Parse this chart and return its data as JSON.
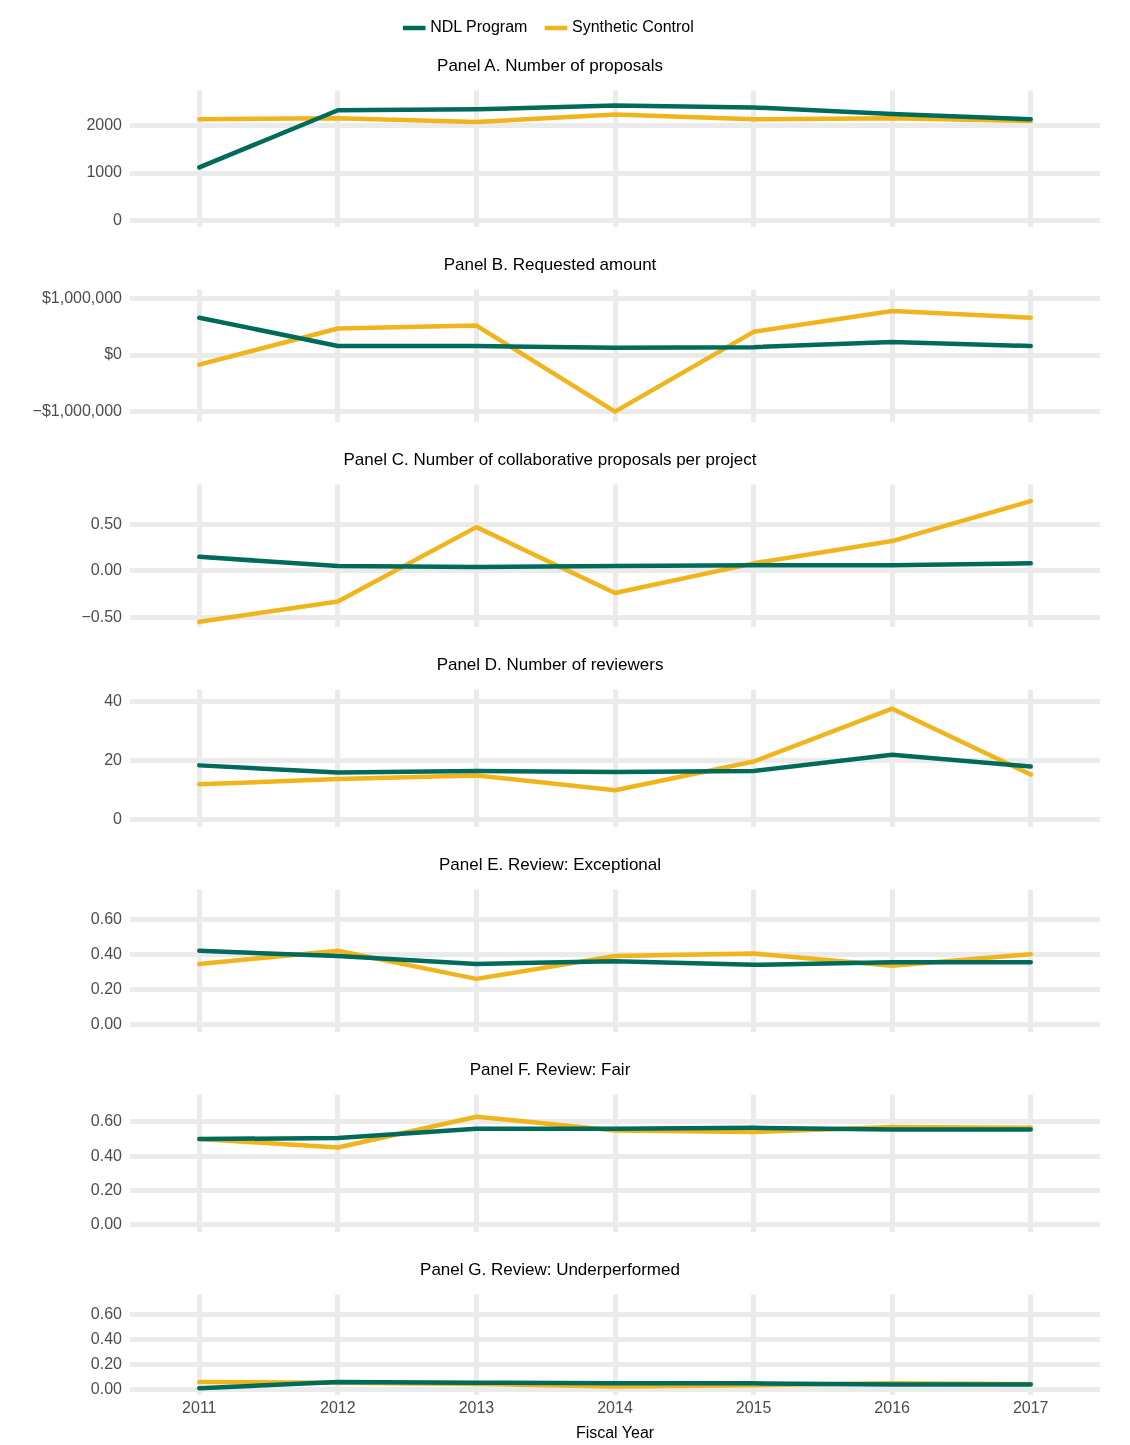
{
  "chart_data": [
    {
      "type": "line",
      "title": "Panel A. Number of proposals",
      "categories": [
        "2011",
        "2012",
        "2013",
        "2014",
        "2015",
        "2016",
        "2017"
      ],
      "legend": "top",
      "tick_labels": "y",
      "grid": true,
      "ylim": [
        -150,
        2750
      ],
      "yticks": [
        0,
        1000,
        2000
      ],
      "series": [
        {
          "name": "NDL Program",
          "color": "#006b5a",
          "values": [
            1120,
            2330,
            2350,
            2430,
            2390,
            2250,
            2140
          ]
        },
        {
          "name": "Synthetic Control",
          "color": "#f0b41c",
          "values": [
            2140,
            2160,
            2080,
            2240,
            2140,
            2160,
            2100
          ]
        }
      ]
    },
    {
      "type": "line",
      "title": "Panel B. Requested amount",
      "categories": [
        "2011",
        "2012",
        "2013",
        "2014",
        "2015",
        "2016",
        "2017"
      ],
      "legend": false,
      "tick_labels": "y",
      "grid": true,
      "ylim": [
        -1190000,
        1160000
      ],
      "yticks": [
        {
          "value": -1000000,
          "label": "−$1,000,000"
        },
        {
          "value": 0,
          "label": "$0"
        },
        {
          "value": 1000000,
          "label": "$1,000,000"
        }
      ],
      "series": [
        {
          "color": "#006b5a",
          "values": [
            660000,
            160000,
            160000,
            130000,
            140000,
            230000,
            160000
          ]
        },
        {
          "color": "#f0b41c",
          "values": [
            -170000,
            470000,
            520000,
            -1000000,
            410000,
            780000,
            660000
          ]
        }
      ]
    },
    {
      "type": "line",
      "title": "Panel C. Number of collaborative proposals per project",
      "categories": [
        "2011",
        "2012",
        "2013",
        "2014",
        "2015",
        "2016",
        "2017"
      ],
      "legend": false,
      "tick_labels": "y",
      "grid": true,
      "ylim": [
        -0.61,
        0.93
      ],
      "yticks": [
        {
          "value": -0.5,
          "label": "−0.50"
        },
        {
          "value": 0,
          "label": "0.00"
        },
        {
          "value": 0.5,
          "label": "0.50"
        }
      ],
      "series": [
        {
          "color": "#006b5a",
          "values": [
            0.15,
            0.05,
            0.04,
            0.05,
            0.06,
            0.06,
            0.08
          ]
        },
        {
          "color": "#f0b41c",
          "values": [
            -0.55,
            -0.33,
            0.47,
            -0.24,
            0.08,
            0.32,
            0.75
          ]
        }
      ]
    },
    {
      "type": "line",
      "title": "Panel D. Number of reviewers",
      "categories": [
        "2011",
        "2012",
        "2013",
        "2014",
        "2015",
        "2016",
        "2017"
      ],
      "legend": false,
      "tick_labels": "y",
      "grid": true,
      "ylim": [
        -2.5,
        44
      ],
      "yticks": [
        0,
        20,
        40
      ],
      "series": [
        {
          "color": "#006b5a",
          "values": [
            18.4,
            16,
            16.5,
            16.2,
            16.5,
            22,
            18
          ]
        },
        {
          "color": "#f0b41c",
          "values": [
            12,
            13.8,
            15,
            10,
            19.7,
            37.5,
            15.3
          ]
        }
      ]
    },
    {
      "type": "line",
      "title": "Panel E. Review: Exceptional",
      "categories": [
        "2011",
        "2012",
        "2013",
        "2014",
        "2015",
        "2016",
        "2017"
      ],
      "legend": false,
      "tick_labels": "y",
      "grid": true,
      "ylim": [
        -0.045,
        0.77
      ],
      "yticks": [
        {
          "value": 0,
          "label": "0.00"
        },
        {
          "value": 0.2,
          "label": "0.20"
        },
        {
          "value": 0.4,
          "label": "0.40"
        },
        {
          "value": 0.6,
          "label": "0.60"
        }
      ],
      "series": [
        {
          "color": "#006b5a",
          "values": [
            0.42,
            0.39,
            0.345,
            0.36,
            0.34,
            0.355,
            0.355
          ]
        },
        {
          "color": "#f0b41c",
          "values": [
            0.345,
            0.42,
            0.26,
            0.39,
            0.405,
            0.335,
            0.4
          ]
        }
      ]
    },
    {
      "type": "line",
      "title": "Panel F. Review: Fair",
      "categories": [
        "2011",
        "2012",
        "2013",
        "2014",
        "2015",
        "2016",
        "2017"
      ],
      "legend": false,
      "tick_labels": "y",
      "grid": true,
      "ylim": [
        -0.045,
        0.76
      ],
      "yticks": [
        {
          "value": 0,
          "label": "0.00"
        },
        {
          "value": 0.2,
          "label": "0.20"
        },
        {
          "value": 0.4,
          "label": "0.40"
        },
        {
          "value": 0.6,
          "label": "0.60"
        }
      ],
      "series": [
        {
          "color": "#006b5a",
          "values": [
            0.5,
            0.505,
            0.56,
            0.56,
            0.565,
            0.555,
            0.555
          ]
        },
        {
          "color": "#f0b41c",
          "values": [
            0.5,
            0.45,
            0.63,
            0.55,
            0.54,
            0.57,
            0.565
          ]
        }
      ]
    },
    {
      "type": "line",
      "title": "Panel G. Review: Underperformed",
      "xlabel": "Fiscal Year",
      "categories": [
        "2011",
        "2012",
        "2013",
        "2014",
        "2015",
        "2016",
        "2017"
      ],
      "legend": false,
      "grid": true,
      "ylim": [
        -0.04,
        0.76
      ],
      "yticks": [
        {
          "value": 0,
          "label": "0.00"
        },
        {
          "value": 0.2,
          "label": "0.20"
        },
        {
          "value": 0.4,
          "label": "0.40"
        },
        {
          "value": 0.6,
          "label": "0.60"
        }
      ],
      "series": [
        {
          "color": "#006b5a",
          "values": [
            0.01,
            0.06,
            0.055,
            0.05,
            0.05,
            0.04,
            0.04
          ]
        },
        {
          "color": "#f0b41c",
          "values": [
            0.06,
            0.055,
            0.045,
            0.025,
            0.035,
            0.05,
            0.045
          ]
        }
      ]
    }
  ]
}
